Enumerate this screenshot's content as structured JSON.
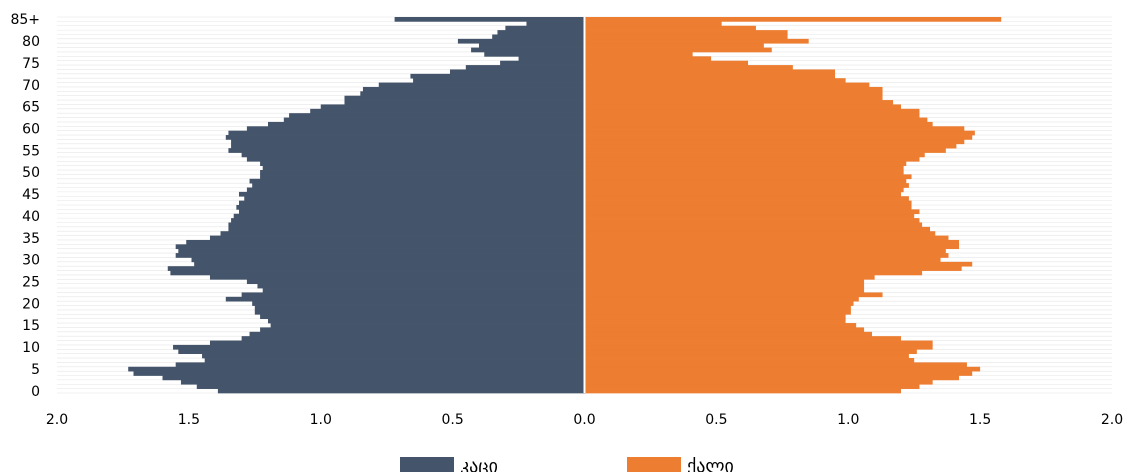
{
  "chart_data": {
    "type": "bar",
    "orientation": "horizontal",
    "layout": "population-pyramid",
    "title": "",
    "xlabel": "",
    "ylabel": "",
    "xlim": [
      -2.0,
      2.0
    ],
    "x_ticks": [
      -2.0,
      -1.5,
      -1.0,
      -0.5,
      0.0,
      0.5,
      1.0,
      1.5,
      2.0
    ],
    "x_tick_labels": [
      "2.0",
      "1.5",
      "1.0",
      "0.5",
      "0.0",
      "0.5",
      "1.0",
      "1.5",
      "2.0"
    ],
    "categories": [
      "0",
      "1",
      "2",
      "3",
      "4",
      "5",
      "6",
      "7",
      "8",
      "9",
      "10",
      "11",
      "12",
      "13",
      "14",
      "15",
      "16",
      "17",
      "18",
      "19",
      "20",
      "21",
      "22",
      "23",
      "24",
      "25",
      "26",
      "27",
      "28",
      "29",
      "30",
      "31",
      "32",
      "33",
      "34",
      "35",
      "36",
      "37",
      "38",
      "39",
      "40",
      "41",
      "42",
      "43",
      "44",
      "45",
      "46",
      "47",
      "48",
      "49",
      "50",
      "51",
      "52",
      "53",
      "54",
      "55",
      "56",
      "57",
      "58",
      "59",
      "60",
      "61",
      "62",
      "63",
      "64",
      "65",
      "66",
      "67",
      "68",
      "69",
      "70",
      "71",
      "72",
      "73",
      "74",
      "75",
      "76",
      "77",
      "78",
      "79",
      "80",
      "81",
      "82",
      "83",
      "84",
      "85+"
    ],
    "y_tick_labels": [
      "0",
      "5",
      "10",
      "15",
      "20",
      "25",
      "30",
      "35",
      "40",
      "45",
      "50",
      "55",
      "60",
      "65",
      "70",
      "75",
      "80",
      "85+"
    ],
    "y_tick_indices": [
      0,
      5,
      10,
      15,
      20,
      25,
      30,
      35,
      40,
      45,
      50,
      55,
      60,
      65,
      70,
      75,
      80,
      85
    ],
    "grid": false,
    "legend_position": "bottom-center",
    "series": [
      {
        "name": "კაცი",
        "color": "#44546a",
        "side": "left",
        "values": [
          1.39,
          1.47,
          1.53,
          1.6,
          1.71,
          1.73,
          1.55,
          1.44,
          1.45,
          1.54,
          1.56,
          1.42,
          1.3,
          1.27,
          1.23,
          1.19,
          1.2,
          1.23,
          1.25,
          1.25,
          1.26,
          1.36,
          1.3,
          1.22,
          1.24,
          1.28,
          1.42,
          1.57,
          1.58,
          1.48,
          1.49,
          1.55,
          1.54,
          1.55,
          1.51,
          1.42,
          1.38,
          1.35,
          1.35,
          1.34,
          1.33,
          1.31,
          1.32,
          1.31,
          1.29,
          1.31,
          1.28,
          1.26,
          1.27,
          1.23,
          1.23,
          1.22,
          1.23,
          1.28,
          1.3,
          1.35,
          1.34,
          1.34,
          1.36,
          1.35,
          1.28,
          1.2,
          1.14,
          1.12,
          1.04,
          1.0,
          0.91,
          0.91,
          0.85,
          0.84,
          0.78,
          0.65,
          0.66,
          0.51,
          0.45,
          0.32,
          0.25,
          0.38,
          0.43,
          0.4,
          0.48,
          0.35,
          0.33,
          0.3,
          0.22,
          0.72
        ]
      },
      {
        "name": "ქალი",
        "color": "#ed7d31",
        "side": "right",
        "values": [
          1.2,
          1.27,
          1.32,
          1.42,
          1.47,
          1.5,
          1.45,
          1.25,
          1.23,
          1.26,
          1.32,
          1.32,
          1.2,
          1.09,
          1.06,
          1.03,
          0.99,
          0.99,
          1.01,
          1.01,
          1.02,
          1.04,
          1.13,
          1.06,
          1.06,
          1.06,
          1.1,
          1.28,
          1.43,
          1.47,
          1.35,
          1.38,
          1.37,
          1.42,
          1.42,
          1.38,
          1.33,
          1.31,
          1.28,
          1.27,
          1.25,
          1.27,
          1.24,
          1.24,
          1.23,
          1.2,
          1.21,
          1.23,
          1.22,
          1.24,
          1.21,
          1.21,
          1.22,
          1.27,
          1.29,
          1.37,
          1.41,
          1.44,
          1.47,
          1.48,
          1.44,
          1.32,
          1.3,
          1.27,
          1.27,
          1.2,
          1.17,
          1.13,
          1.13,
          1.13,
          1.08,
          0.99,
          0.95,
          0.95,
          0.79,
          0.62,
          0.48,
          0.41,
          0.71,
          0.68,
          0.85,
          0.77,
          0.77,
          0.65,
          0.52,
          1.58
        ]
      }
    ]
  }
}
